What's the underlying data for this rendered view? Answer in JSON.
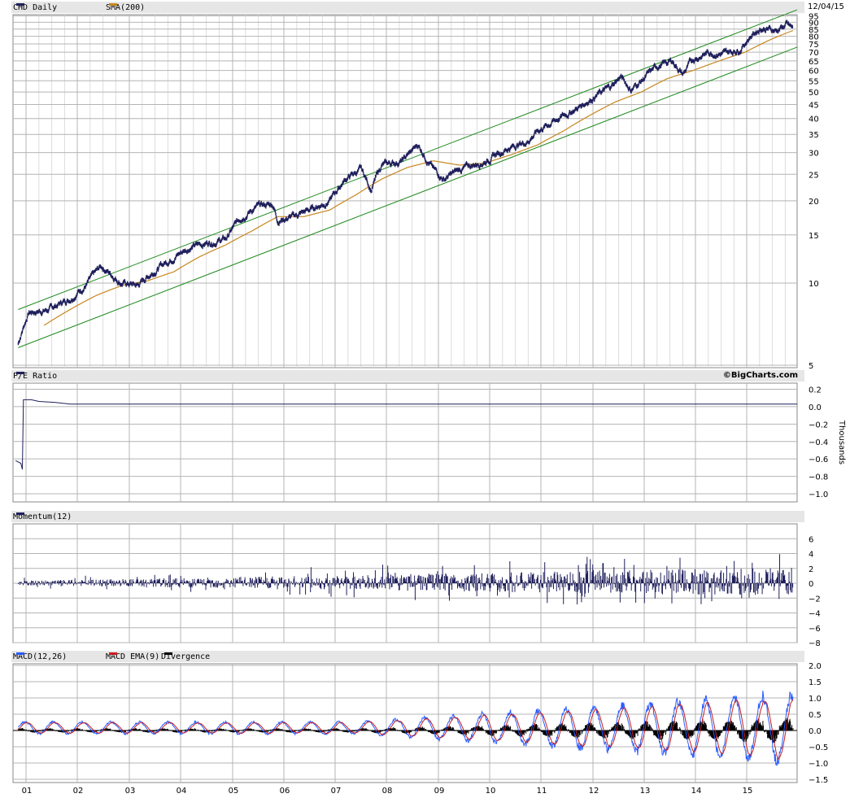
{
  "date": "12/04/15",
  "credit": "©BigCharts.com",
  "legends": {
    "price": "CHD Daily",
    "sma": "SMA(200)",
    "pe": "P/E Ratio",
    "mom": "Momentum(12)",
    "macd": "MACD(12,26)",
    "macd_ema": "MACD EMA(9)",
    "divergence": "Divergence"
  },
  "colors": {
    "price": "#1f1f5c",
    "sma": "#c8861e",
    "channel": "#1e8a1e",
    "macd": "#2a5cff",
    "macd_ema": "#c81e1e",
    "divergence": "#000000",
    "grid": "#b4b4b4"
  },
  "chart_data": [
    {
      "type": "line",
      "name": "price",
      "scale": "log",
      "y_ticks": [
        5,
        10,
        15,
        20,
        25,
        30,
        35,
        40,
        45,
        50,
        55,
        60,
        65,
        70,
        75,
        80,
        85,
        90,
        95
      ],
      "x_labels": [
        "01",
        "02",
        "03",
        "04",
        "05",
        "06",
        "07",
        "08",
        "09",
        "10",
        "11",
        "12",
        "13",
        "14",
        "15"
      ],
      "series": [
        {
          "name": "CHD Daily",
          "points": [
            [
              2001.0,
              6.0
            ],
            [
              2001.2,
              7.8
            ],
            [
              2001.6,
              8.0
            ],
            [
              2002.0,
              8.8
            ],
            [
              2002.3,
              9.8
            ],
            [
              2002.6,
              11.5
            ],
            [
              2003.0,
              10.0
            ],
            [
              2003.3,
              9.8
            ],
            [
              2003.6,
              11.0
            ],
            [
              2004.0,
              12.5
            ],
            [
              2004.3,
              13.5
            ],
            [
              2004.6,
              14.0
            ],
            [
              2005.0,
              14.5
            ],
            [
              2005.3,
              17.5
            ],
            [
              2005.6,
              19.0
            ],
            [
              2005.9,
              19.5
            ],
            [
              2006.0,
              17.0
            ],
            [
              2006.3,
              17.5
            ],
            [
              2006.6,
              18.5
            ],
            [
              2007.0,
              20.0
            ],
            [
              2007.3,
              24.0
            ],
            [
              2007.6,
              26.0
            ],
            [
              2007.8,
              22.0
            ],
            [
              2008.0,
              27.0
            ],
            [
              2008.4,
              28.0
            ],
            [
              2008.7,
              32.0
            ],
            [
              2009.0,
              26.0
            ],
            [
              2009.2,
              24.0
            ],
            [
              2009.5,
              26.0
            ],
            [
              2010.0,
              28.0
            ],
            [
              2010.4,
              31.0
            ],
            [
              2010.8,
              33.0
            ],
            [
              2011.0,
              36.0
            ],
            [
              2011.4,
              40.0
            ],
            [
              2011.8,
              44.0
            ],
            [
              2012.0,
              47.0
            ],
            [
              2012.4,
              52.0
            ],
            [
              2012.6,
              57.0
            ],
            [
              2012.8,
              51.0
            ],
            [
              2013.0,
              55.0
            ],
            [
              2013.3,
              62.0
            ],
            [
              2013.6,
              65.0
            ],
            [
              2013.8,
              58.0
            ],
            [
              2014.0,
              66.0
            ],
            [
              2014.3,
              70.0
            ],
            [
              2014.6,
              69.0
            ],
            [
              2014.9,
              72.0
            ],
            [
              2015.1,
              80.0
            ],
            [
              2015.3,
              86.0
            ],
            [
              2015.6,
              84.0
            ],
            [
              2015.8,
              88.0
            ],
            [
              2015.92,
              85.0
            ]
          ]
        },
        {
          "name": "SMA(200)",
          "points": [
            [
              2001.5,
              7.0
            ],
            [
              2002.0,
              8.0
            ],
            [
              2002.5,
              9.0
            ],
            [
              2003.0,
              9.8
            ],
            [
              2003.5,
              10.2
            ],
            [
              2004.0,
              11.0
            ],
            [
              2004.5,
              12.5
            ],
            [
              2005.0,
              13.8
            ],
            [
              2005.5,
              15.5
            ],
            [
              2006.0,
              17.5
            ],
            [
              2006.5,
              17.5
            ],
            [
              2007.0,
              18.5
            ],
            [
              2007.5,
              21.0
            ],
            [
              2008.0,
              24.0
            ],
            [
              2008.5,
              26.5
            ],
            [
              2009.0,
              28.0
            ],
            [
              2009.5,
              27.0
            ],
            [
              2010.0,
              27.5
            ],
            [
              2010.5,
              29.5
            ],
            [
              2011.0,
              32.0
            ],
            [
              2011.5,
              36.0
            ],
            [
              2012.0,
              41.0
            ],
            [
              2012.5,
              46.0
            ],
            [
              2013.0,
              50.0
            ],
            [
              2013.5,
              56.0
            ],
            [
              2014.0,
              60.0
            ],
            [
              2014.5,
              65.0
            ],
            [
              2015.0,
              70.0
            ],
            [
              2015.5,
              78.0
            ],
            [
              2015.92,
              84.0
            ]
          ]
        },
        {
          "name": "channel-upper",
          "points": [
            [
              2001.0,
              8.0
            ],
            [
              2016.0,
              100.0
            ]
          ]
        },
        {
          "name": "channel-lower",
          "points": [
            [
              2001.0,
              5.8
            ],
            [
              2016.0,
              73.0
            ]
          ]
        }
      ]
    },
    {
      "type": "line",
      "name": "pe",
      "y_ticks": [
        0.2,
        0.0,
        -0.2,
        -0.4,
        -0.6,
        -0.8,
        -1.0
      ],
      "y_tick_labels": [
        "0.2",
        "0.0",
        "−0.2",
        "−0.4",
        "−0.6",
        "−0.8",
        "−1.0"
      ],
      "ylabel": "Thousands",
      "series": [
        {
          "name": "P/E Ratio",
          "points": [
            [
              2000.95,
              -0.62
            ],
            [
              2001.05,
              -0.65
            ],
            [
              2001.08,
              -0.72
            ],
            [
              2001.1,
              0.08
            ],
            [
              2001.15,
              0.08
            ],
            [
              2001.25,
              0.08
            ],
            [
              2001.4,
              0.06
            ],
            [
              2001.7,
              0.05
            ],
            [
              2002.0,
              0.03
            ],
            [
              2016.0,
              0.03
            ]
          ]
        }
      ]
    },
    {
      "type": "bar",
      "name": "momentum",
      "y_ticks": [
        6,
        4,
        2,
        0,
        -2,
        -4,
        -6,
        -8
      ],
      "y_tick_labels": [
        "6",
        "4",
        "2",
        "0",
        "−2",
        "−4",
        "−6",
        "−8"
      ]
    },
    {
      "type": "line",
      "name": "macd",
      "y_ticks": [
        2.0,
        1.5,
        1.0,
        0.5,
        0.0,
        -0.5,
        -1.0,
        -1.5
      ],
      "y_tick_labels": [
        "2.0",
        "1.5",
        "1.0",
        "0.5",
        "0.0",
        "−0.5",
        "−1.0",
        "−1.5"
      ]
    }
  ]
}
